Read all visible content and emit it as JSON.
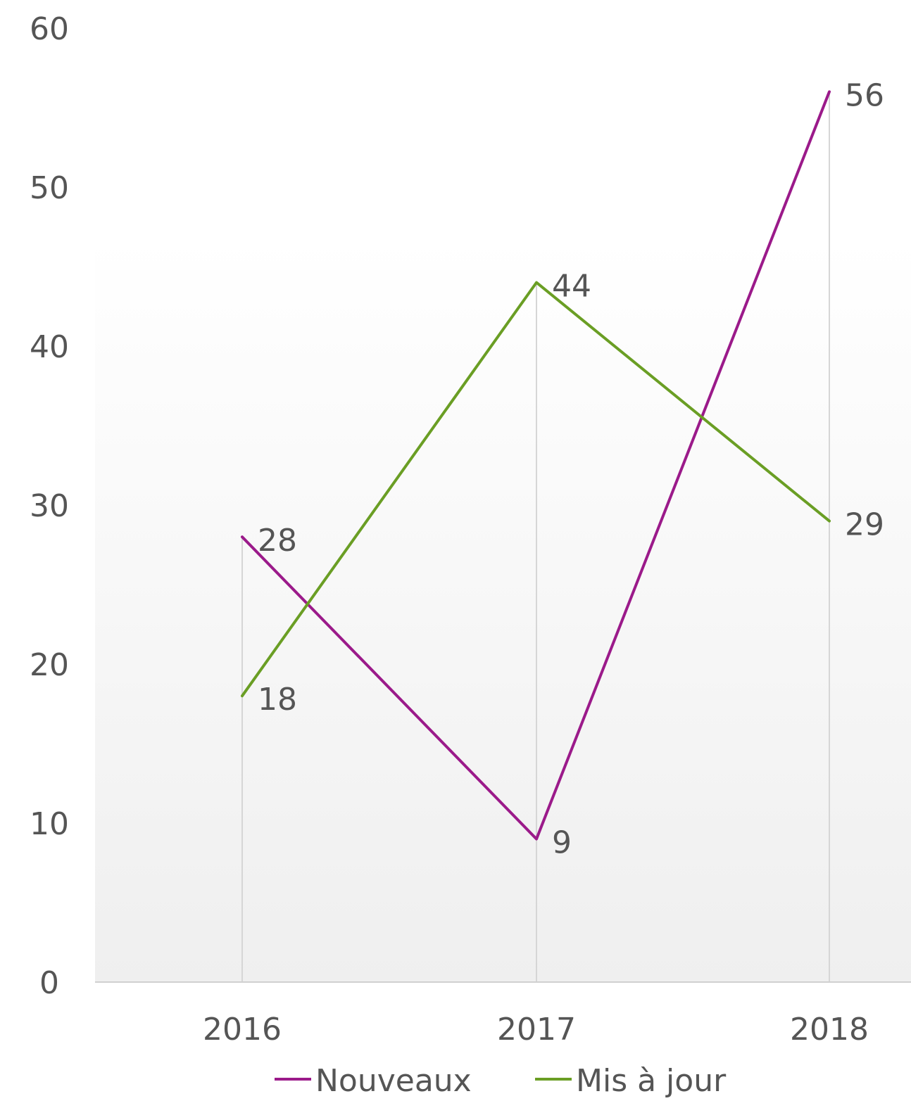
{
  "chart_data": {
    "type": "line",
    "title": "",
    "xlabel": "",
    "ylabel": "",
    "categories": [
      "2016",
      "2017",
      "2018"
    ],
    "ylim": [
      0,
      60
    ],
    "yticks": [
      "0",
      "10",
      "20",
      "30",
      "40",
      "50",
      "60"
    ],
    "grid": "vertical drop lines at categories",
    "legend_position": "bottom",
    "series": [
      {
        "name": "Nouveaux",
        "values": [
          28,
          9,
          56
        ],
        "color": "#9b1a8a",
        "label_text": [
          "28",
          "9",
          "56"
        ]
      },
      {
        "name": "Mis à jour",
        "values": [
          18,
          44,
          29
        ],
        "color": "#6a9e24",
        "label_text": [
          "18",
          "44",
          "29"
        ]
      }
    ]
  }
}
